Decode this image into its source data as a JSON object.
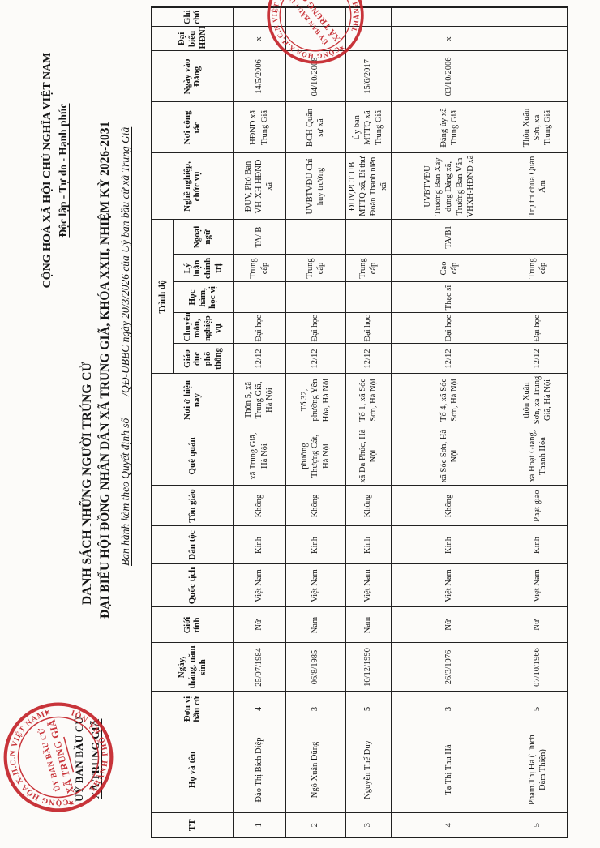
{
  "page": {
    "issuer": {
      "line1": "UỶ BAN BẦU CỬ",
      "line2": "XÃ TRUNG GIÃ"
    },
    "motto": {
      "line1": "CỘNG HOÀ XÃ HỘI CHỦ NGHĨA VIỆT NAM",
      "line2": "Độc lập - Tự do - Hạnh phúc"
    },
    "title": {
      "line1": "DANH SÁCH NHỮNG NGƯỜI TRÚNG CỬ",
      "line2": "ĐẠI BIỂU HỘI ĐỒNG NHÂN DÂN XÃ TRUNG GIÃ, KHÓA XXII, NHIỆM KỲ 2026-2031",
      "line3": "Ban hành kèm theo Quyết định số        /QĐ-UBBC ngày 20/3/2026 của Uỷ ban bầu cử xã Trung Giã"
    }
  },
  "stamp": {
    "arc_top": "CỘNG HÒA X.H.C.N VIỆT NAM",
    "arc_bottom": "THÀNH PHỐ HÀ NỘI",
    "star": "★",
    "center_line1": "ỦY BAN BẦU CỬ",
    "center_line2": "XÃ TRUNG GIÃ",
    "color": "#c5262c"
  },
  "table": {
    "headers": {
      "tt": "TT",
      "name": "Họ và tên",
      "unit": "Đơn vị bầu cử",
      "dob": "Ngày, tháng, năm sinh",
      "gender": "Giới tính",
      "nationality": "Quốc tịch",
      "ethnicity": "Dân tộc",
      "religion": "Tôn giáo",
      "hometown": "Quê quán",
      "residence": "Nơi ở hiện nay",
      "trinh_do": "Trình độ",
      "occupation": "Nghề nghiệp, chức vụ",
      "workplace": "Nơi công tác",
      "party_date": "Ngày vào Đảng",
      "delegate": "Đại biểu HĐND",
      "note": "Ghi chú"
    },
    "sub_headers": [
      "Giáo dục phổ thông",
      "Chuyên môn, nghiệp vụ",
      "Học hàm, học vị",
      "Lý luận chính trị",
      "Ngoại ngữ"
    ],
    "rows": [
      [
        "1",
        "Đào Thị Bích Diệp",
        "4",
        "25/07/1984",
        "Nữ",
        "Việt Nam",
        "Kinh",
        "Không",
        "xã Trung Giã, Hà Nội",
        "Thôn 5, xã Trung Giã, Hà Nội",
        "12/12",
        "Đại học",
        "",
        "Trung cấp",
        "TA/ B",
        "ĐUV, Phó Ban VH-XH HĐND xã",
        "HĐND xã Trung Giã",
        "14/5/2006",
        "x",
        ""
      ],
      [
        "2",
        "Ngô Xuân Dũng",
        "3",
        "06/8/1985",
        "Nam",
        "Việt Nam",
        "Kinh",
        "Không",
        "phường Thượng Cát, Hà Nội",
        "Tổ 32, phường Yên Hòa, Hà Nội",
        "12/12",
        "Đại học",
        "",
        "Trung cấp",
        "",
        "UVBTVĐU Chỉ huy trưởng",
        "BCH Quân sự xã",
        "04/10/2008",
        "",
        ""
      ],
      [
        "3",
        "Nguyễn Thế Duy",
        "5",
        "10/12/1990",
        "Nam",
        "Việt Nam",
        "Kinh",
        "Không",
        "xã Đa Phúc, Hà Nội",
        "Tổ 1, xã Sóc Sơn, Hà Nội",
        "12/12",
        "Đại học",
        "",
        "Trung cấp",
        "",
        "ĐUV,PCT UB MTTQ xã, Bí thư Đoàn Thanh niên xã",
        "Ủy ban MTTQ xã Trung Giã",
        "15/6/2017",
        "",
        ""
      ],
      [
        "4",
        "Tạ Thị Thu Hà",
        "3",
        "26/3/1976",
        "Nữ",
        "Việt Nam",
        "Kinh",
        "Không",
        "xã Sóc Sơn, Hà Nội",
        "Tổ 4, xã Sóc Sơn, Hà Nội",
        "12/12",
        "Đại học",
        "Thạc sĩ",
        "Cao cấp",
        "TA/B1",
        "UVBTVĐU Trưởng Ban Xây dựng Đảng xã, Trưởng Ban Văn VHXH-HĐND xã",
        "Đảng ủy xã Trung Giã",
        "03/10/2006",
        "x",
        ""
      ],
      [
        "5",
        "Phạm.Thị Hà (Thích Đàm Thiện)",
        "5",
        "07/10/1966",
        "Nữ",
        "Việt Nam",
        "Kinh",
        "Phật giáo",
        "xã Hoạt Giang, Thanh Hóa",
        "thôn Xuân Sơn, xã Trung Giã, Hà Nội",
        "12/12",
        "Đại học",
        "",
        "Trung cấp",
        "",
        "Trụ trì chùa Quán Âm",
        "Thôn Xuân Sơn, xã Trung Giã",
        "",
        "",
        ""
      ]
    ]
  }
}
